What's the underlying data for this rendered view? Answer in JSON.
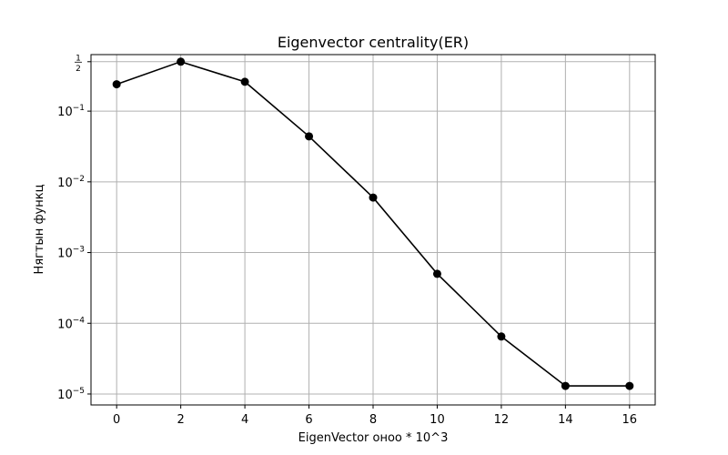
{
  "chart_data": {
    "type": "line",
    "title": "Eigenvector centrality(ER)",
    "xlabel": "EigenVector оноо * 10^3",
    "ylabel": "Нягтын функц",
    "yscale": "log",
    "grid": true,
    "xlim": [
      -0.8,
      16.8
    ],
    "ylim": [
      7e-06,
      0.63
    ],
    "x_ticks": [
      0,
      2,
      4,
      6,
      8,
      10,
      12,
      14,
      16
    ],
    "x_tick_labels": [
      "0",
      "2",
      "4",
      "6",
      "8",
      "10",
      "12",
      "14",
      "16"
    ],
    "y_ticks": [
      {
        "value": 1e-05,
        "base": "10",
        "exp": "−5"
      },
      {
        "value": 0.0001,
        "base": "10",
        "exp": "−4"
      },
      {
        "value": 0.001,
        "base": "10",
        "exp": "−3"
      },
      {
        "value": 0.01,
        "base": "10",
        "exp": "−2"
      },
      {
        "value": 0.1,
        "base": "10",
        "exp": "−1"
      }
    ],
    "y_top_tick": {
      "value": 0.5,
      "numerator": "1",
      "denominator": "2"
    },
    "series": [
      {
        "color": "#000000",
        "marker": "circle",
        "x": [
          0,
          2,
          4,
          6,
          8,
          10,
          12,
          14,
          16
        ],
        "y": [
          0.24,
          0.5,
          0.26,
          0.044,
          0.006,
          0.0005,
          6.5e-05,
          1.3e-05,
          1.3e-05
        ]
      }
    ]
  }
}
